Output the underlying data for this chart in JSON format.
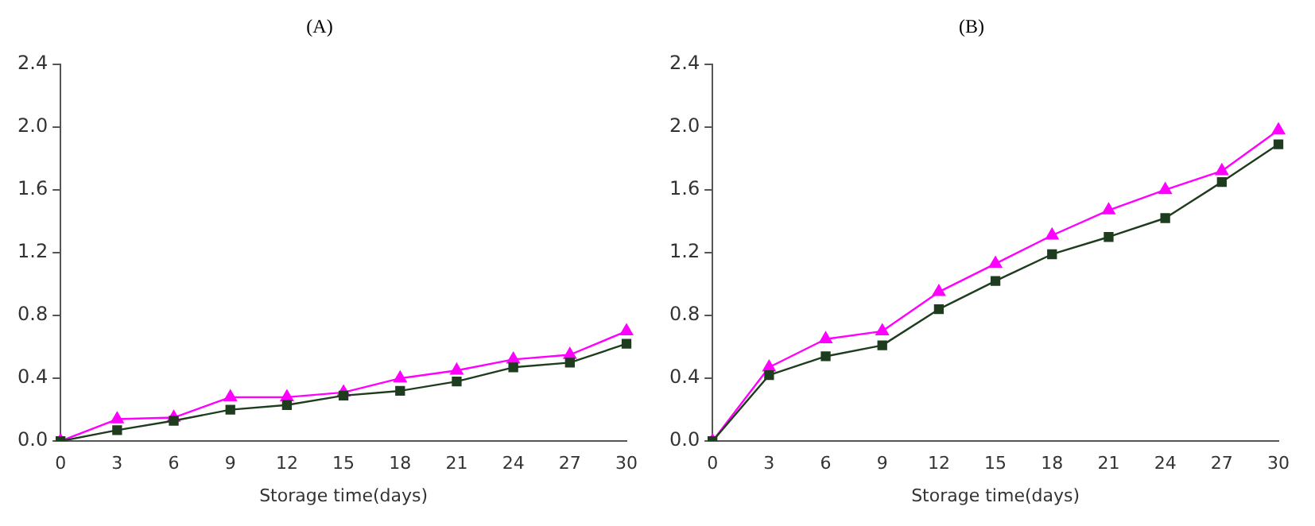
{
  "chart_data": [
    {
      "type": "line",
      "title": "(A)",
      "xlabel": "Storage time(days)",
      "categories": [
        "0",
        "3",
        "6",
        "9",
        "12",
        "15",
        "18",
        "21",
        "24",
        "27",
        "30"
      ],
      "ylim": [
        0,
        2.4
      ],
      "yticks": [
        {
          "value": 0,
          "label": "0.0"
        },
        {
          "value": 0.4,
          "label": "0.4"
        },
        {
          "value": 0.8,
          "label": "0.8"
        },
        {
          "value": 1.2,
          "label": "1.2"
        },
        {
          "value": 1.6,
          "label": "1.6"
        },
        {
          "value": 2.0,
          "label": "2.0"
        },
        {
          "value": 2.4,
          "label": "2.4"
        }
      ],
      "grid": false,
      "legend": false,
      "series": [
        {
          "color": "#ff00ff",
          "marker": "triangle",
          "values": [
            0,
            0.14,
            0.15,
            0.28,
            0.28,
            0.31,
            0.4,
            0.45,
            0.52,
            0.55,
            0.7
          ]
        },
        {
          "color": "#1e3d1e",
          "marker": "square",
          "values": [
            0,
            0.07,
            0.13,
            0.2,
            0.23,
            0.29,
            0.32,
            0.38,
            0.47,
            0.5,
            0.62
          ]
        }
      ]
    },
    {
      "type": "line",
      "title": "(B)",
      "xlabel": "Storage time(days)",
      "categories": [
        "0",
        "3",
        "6",
        "9",
        "12",
        "15",
        "18",
        "21",
        "24",
        "27",
        "30"
      ],
      "ylim": [
        0,
        2.4
      ],
      "yticks": [
        {
          "value": 0,
          "label": "0.0"
        },
        {
          "value": 0.4,
          "label": "0.4"
        },
        {
          "value": 0.8,
          "label": "0.8"
        },
        {
          "value": 1.2,
          "label": "1.2"
        },
        {
          "value": 1.6,
          "label": "1.6"
        },
        {
          "value": 2.0,
          "label": "2.0"
        },
        {
          "value": 2.4,
          "label": "2.4"
        }
      ],
      "grid": false,
      "legend": false,
      "series": [
        {
          "color": "#ff00ff",
          "marker": "triangle",
          "values": [
            0,
            0.47,
            0.65,
            0.7,
            0.95,
            1.13,
            1.31,
            1.47,
            1.6,
            1.72,
            1.98
          ]
        },
        {
          "color": "#1e3d1e",
          "marker": "square",
          "values": [
            0,
            0.42,
            0.54,
            0.61,
            0.84,
            1.02,
            1.19,
            1.3,
            1.42,
            1.65,
            1.89
          ]
        }
      ]
    }
  ]
}
